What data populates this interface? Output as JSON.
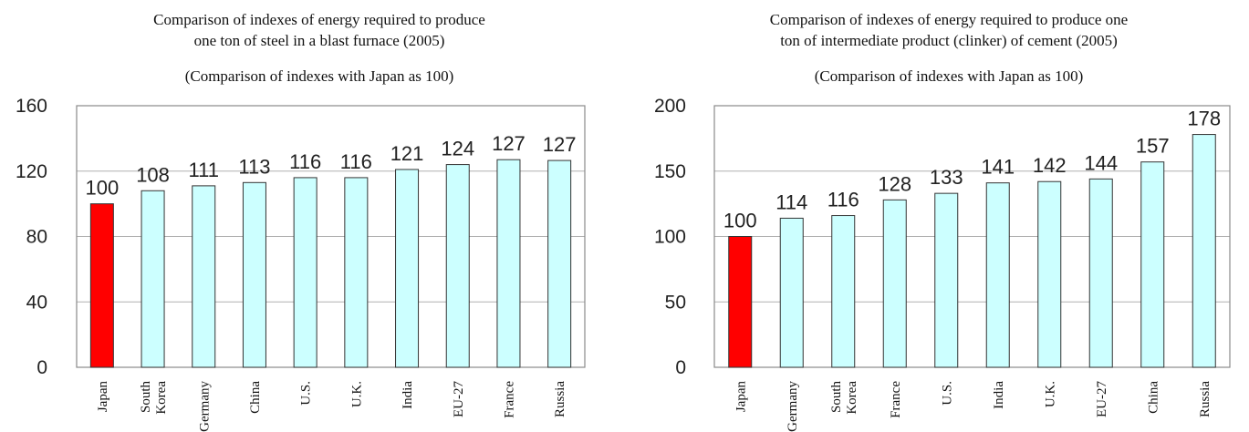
{
  "chart_data": [
    {
      "type": "bar",
      "title_lines": [
        "Comparison of indexes of energy required to produce",
        "one ton of steel in a blast furnace (2005)"
      ],
      "subtitle": "(Comparison of indexes with Japan as 100)",
      "categories": [
        [
          "Japan"
        ],
        [
          "South",
          "Korea"
        ],
        [
          "Germany"
        ],
        [
          "China"
        ],
        [
          "U.S."
        ],
        [
          "U.K."
        ],
        [
          "India"
        ],
        [
          "EU-27"
        ],
        [
          "France"
        ],
        [
          "Russia"
        ]
      ],
      "values": [
        100,
        108,
        111,
        113,
        116,
        116,
        121,
        124,
        127,
        127
      ],
      "bar_heights": [
        100,
        108,
        111,
        113,
        116,
        116,
        121,
        124,
        127,
        126.5
      ],
      "ylim": [
        0,
        160
      ],
      "yticks": [
        0,
        40,
        80,
        120,
        160
      ],
      "highlight_index": 0,
      "colors": {
        "highlight": "#ff0000",
        "bar": "#ccffff"
      },
      "grid": true,
      "xlabel": "",
      "ylabel": ""
    },
    {
      "type": "bar",
      "title_lines": [
        "Comparison of indexes of energy required to produce one",
        "ton of intermediate product (clinker) of cement (2005)"
      ],
      "subtitle": "(Comparison of indexes with Japan as 100)",
      "categories": [
        [
          "Japan"
        ],
        [
          "Germany"
        ],
        [
          "South",
          "Korea"
        ],
        [
          "France"
        ],
        [
          "U.S."
        ],
        [
          "India"
        ],
        [
          "U.K."
        ],
        [
          "EU-27"
        ],
        [
          "China"
        ],
        [
          "Russia"
        ]
      ],
      "values": [
        100,
        114,
        116,
        128,
        133,
        141,
        142,
        144,
        157,
        178
      ],
      "bar_heights": [
        100,
        114,
        116,
        128,
        133,
        141,
        142,
        144,
        157,
        178
      ],
      "ylim": [
        0,
        200
      ],
      "yticks": [
        0,
        50,
        100,
        150,
        200
      ],
      "highlight_index": 0,
      "colors": {
        "highlight": "#ff0000",
        "bar": "#ccffff"
      },
      "grid": true,
      "xlabel": "",
      "ylabel": ""
    }
  ]
}
